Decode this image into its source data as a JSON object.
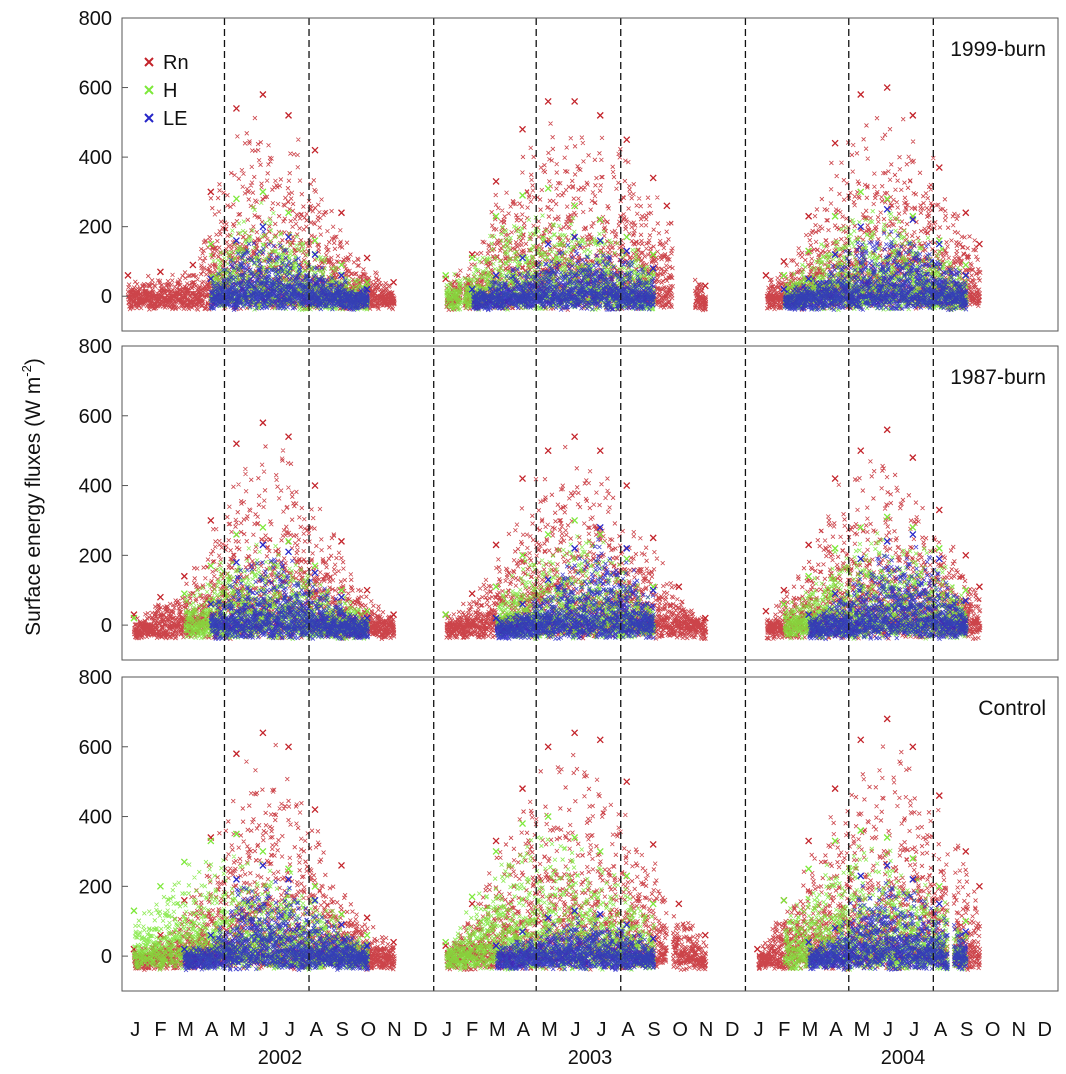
{
  "chart_data": {
    "type": "scatter",
    "ylabel": "Surface energy fluxes (W m",
    "ylabel_sup": "-2",
    "ylabel_close": ")",
    "ylim": [
      -100,
      800
    ],
    "yticks": [
      0,
      200,
      400,
      600,
      800
    ],
    "xlim": [
      "2002-01-01",
      "2004-12-31"
    ],
    "month_labels": [
      "J",
      "F",
      "M",
      "A",
      "M",
      "J",
      "J",
      "A",
      "S",
      "O",
      "N",
      "D",
      "J",
      "F",
      "M",
      "A",
      "M",
      "J",
      "J",
      "A",
      "S",
      "O",
      "N",
      "D",
      "J",
      "F",
      "M",
      "A",
      "M",
      "J",
      "J",
      "A",
      "S",
      "O",
      "N",
      "D"
    ],
    "years": [
      "2002",
      "2003",
      "2004"
    ],
    "year_boundaries": [
      "2003-01-01",
      "2004-01-01"
    ],
    "season_markers": [
      "2002-05-01",
      "2002-08-08",
      "2003-05-01",
      "2003-08-08",
      "2004-05-01",
      "2004-08-08"
    ],
    "legend": {
      "placement": "top-left",
      "entries": [
        {
          "name": "Rn",
          "color": "#c3232a"
        },
        {
          "name": "H",
          "color": "#7de83a"
        },
        {
          "name": "LE",
          "color": "#2626c8"
        }
      ]
    },
    "panels": [
      {
        "name": "1999-burn",
        "gaps": [
          [
            "2002-12-05",
            "2003-01-01"
          ],
          [
            "2003-02-02",
            "2003-02-06"
          ],
          [
            "2003-10-08",
            "2003-11-03"
          ],
          [
            "2003-11-22",
            "2004-01-16"
          ]
        ],
        "series": [
          {
            "name": "Rn",
            "x": [
              "2002-01-08",
              "2002-02-15",
              "2002-03-25",
              "2002-04-15",
              "2002-05-15",
              "2002-06-15",
              "2002-07-15",
              "2002-08-15",
              "2002-09-15",
              "2002-10-15",
              "2002-11-15",
              "2003-01-15",
              "2003-02-15",
              "2003-03-15",
              "2003-04-15",
              "2003-05-15",
              "2003-06-15",
              "2003-07-15",
              "2003-08-15",
              "2003-09-15",
              "2003-10-01",
              "2003-11-15",
              "2004-01-25",
              "2004-02-15",
              "2004-03-15",
              "2004-04-15",
              "2004-05-15",
              "2004-06-15",
              "2004-07-15",
              "2004-08-15",
              "2004-09-15",
              "2004-10-01"
            ],
            "y": [
              60,
              70,
              90,
              300,
              540,
              580,
              520,
              420,
              240,
              110,
              40,
              50,
              120,
              330,
              480,
              560,
              560,
              520,
              450,
              340,
              260,
              30,
              60,
              100,
              230,
              440,
              580,
              600,
              520,
              370,
              240,
              150
            ]
          },
          {
            "name": "H",
            "x": [
              "2002-04-15",
              "2002-05-15",
              "2002-06-15",
              "2002-07-15",
              "2002-08-15",
              "2002-09-15",
              "2002-10-15",
              "2003-01-15",
              "2003-02-15",
              "2003-03-15",
              "2003-04-15",
              "2003-05-15",
              "2003-06-15",
              "2003-07-15",
              "2003-08-15",
              "2003-09-15",
              "2004-02-15",
              "2004-03-15",
              "2004-04-15",
              "2004-05-15",
              "2004-06-15",
              "2004-07-15",
              "2004-08-15",
              "2004-09-15"
            ],
            "y": [
              150,
              280,
              300,
              240,
              160,
              90,
              40,
              60,
              110,
              230,
              290,
              310,
              260,
              220,
              170,
              120,
              60,
              130,
              230,
              300,
              280,
              230,
              160,
              90
            ]
          },
          {
            "name": "LE",
            "x": [
              "2002-04-15",
              "2002-05-15",
              "2002-06-15",
              "2002-07-15",
              "2002-08-15",
              "2002-09-15",
              "2002-10-15",
              "2003-02-15",
              "2003-03-15",
              "2003-04-15",
              "2003-05-15",
              "2003-06-15",
              "2003-07-15",
              "2003-08-15",
              "2003-09-15",
              "2004-02-15",
              "2004-03-15",
              "2004-04-15",
              "2004-05-15",
              "2004-06-15",
              "2004-07-15",
              "2004-08-15",
              "2004-09-15"
            ],
            "y": [
              50,
              160,
              200,
              170,
              120,
              60,
              20,
              20,
              60,
              110,
              150,
              170,
              160,
              130,
              80,
              20,
              50,
              120,
              200,
              250,
              220,
              150,
              60
            ]
          }
        ]
      },
      {
        "name": "1987-burn",
        "gaps": [
          [
            "2002-12-05",
            "2003-01-01"
          ],
          [
            "2003-11-22",
            "2004-01-16"
          ]
        ],
        "series": [
          {
            "name": "Rn",
            "x": [
              "2002-01-15",
              "2002-02-15",
              "2002-03-15",
              "2002-04-15",
              "2002-05-15",
              "2002-06-15",
              "2002-07-15",
              "2002-08-15",
              "2002-09-15",
              "2002-10-15",
              "2002-11-15",
              "2003-01-15",
              "2003-02-15",
              "2003-03-15",
              "2003-04-15",
              "2003-05-15",
              "2003-06-15",
              "2003-07-15",
              "2003-08-15",
              "2003-09-15",
              "2003-10-15",
              "2003-11-15",
              "2004-01-25",
              "2004-02-15",
              "2004-03-15",
              "2004-04-15",
              "2004-05-15",
              "2004-06-15",
              "2004-07-15",
              "2004-08-15",
              "2004-09-15",
              "2004-10-01"
            ],
            "y": [
              30,
              80,
              140,
              300,
              520,
              580,
              540,
              400,
              240,
              100,
              30,
              30,
              90,
              230,
              420,
              500,
              540,
              500,
              400,
              250,
              110,
              20,
              40,
              100,
              230,
              420,
              500,
              560,
              480,
              330,
              200,
              110
            ]
          },
          {
            "name": "H",
            "x": [
              "2002-01-15",
              "2002-03-15",
              "2002-04-15",
              "2002-05-15",
              "2002-06-15",
              "2002-07-15",
              "2002-08-15",
              "2002-09-15",
              "2002-10-15",
              "2003-01-15",
              "2003-03-15",
              "2003-04-15",
              "2003-05-15",
              "2003-06-15",
              "2003-07-15",
              "2003-08-15",
              "2003-09-15",
              "2004-02-15",
              "2004-03-15",
              "2004-04-15",
              "2004-05-15",
              "2004-06-15",
              "2004-07-15",
              "2004-08-15",
              "2004-09-15"
            ],
            "y": [
              20,
              90,
              170,
              260,
              280,
              240,
              170,
              100,
              40,
              30,
              110,
              200,
              260,
              300,
              260,
              190,
              110,
              60,
              140,
              220,
              280,
              310,
              280,
              220,
              100
            ]
          },
          {
            "name": "LE",
            "x": [
              "2002-04-15",
              "2002-05-15",
              "2002-06-15",
              "2002-07-15",
              "2002-08-15",
              "2002-09-15",
              "2002-10-15",
              "2003-03-15",
              "2003-04-15",
              "2003-05-15",
              "2003-06-15",
              "2003-07-15",
              "2003-08-15",
              "2003-09-15",
              "2004-03-15",
              "2004-04-15",
              "2004-05-15",
              "2004-06-15",
              "2004-07-15",
              "2004-08-15",
              "2004-09-15"
            ],
            "y": [
              60,
              180,
              230,
              210,
              150,
              80,
              20,
              20,
              60,
              130,
              220,
              280,
              220,
              100,
              30,
              90,
              190,
              240,
              260,
              190,
              70
            ]
          }
        ]
      },
      {
        "name": "Control",
        "gaps": [
          [
            "2002-12-05",
            "2003-01-01"
          ],
          [
            "2003-10-01",
            "2003-10-08"
          ],
          [
            "2003-11-22",
            "2003-12-01"
          ],
          [
            "2003-12-20",
            "2004-01-01"
          ],
          [
            "2004-08-25",
            "2004-09-01"
          ]
        ],
        "series": [
          {
            "name": "Rn",
            "x": [
              "2002-01-15",
              "2002-02-15",
              "2002-03-15",
              "2002-04-15",
              "2002-05-15",
              "2002-06-15",
              "2002-07-15",
              "2002-08-15",
              "2002-09-15",
              "2002-10-15",
              "2002-11-15",
              "2003-01-15",
              "2003-02-15",
              "2003-03-15",
              "2003-04-15",
              "2003-05-15",
              "2003-06-15",
              "2003-07-15",
              "2003-08-15",
              "2003-09-15",
              "2003-10-15",
              "2003-11-15",
              "2004-01-15",
              "2004-02-15",
              "2004-03-15",
              "2004-04-15",
              "2004-05-15",
              "2004-06-15",
              "2004-07-15",
              "2004-08-15",
              "2004-09-15",
              "2004-10-01"
            ],
            "y": [
              20,
              60,
              160,
              340,
              580,
              640,
              600,
              420,
              260,
              110,
              40,
              30,
              150,
              330,
              480,
              600,
              640,
              620,
              500,
              320,
              150,
              60,
              20,
              160,
              330,
              480,
              620,
              680,
              600,
              460,
              300,
              200
            ]
          },
          {
            "name": "H",
            "x": [
              "2002-01-15",
              "2002-02-15",
              "2002-03-15",
              "2002-04-15",
              "2002-05-15",
              "2002-06-15",
              "2002-07-15",
              "2002-08-15",
              "2002-09-15",
              "2002-10-15",
              "2003-01-15",
              "2003-02-15",
              "2003-03-15",
              "2003-04-15",
              "2003-05-15",
              "2003-06-15",
              "2003-07-15",
              "2003-08-15",
              "2003-09-15",
              "2004-02-15",
              "2004-03-15",
              "2004-04-15",
              "2004-05-15",
              "2004-06-15",
              "2004-07-15",
              "2004-08-15",
              "2004-09-15"
            ],
            "y": [
              130,
              200,
              270,
              330,
              350,
              300,
              250,
              200,
              120,
              60,
              40,
              170,
              300,
              380,
              400,
              340,
              300,
              230,
              150,
              160,
              250,
              330,
              360,
              340,
              280,
              200,
              100
            ]
          },
          {
            "name": "LE",
            "x": [
              "2002-03-15",
              "2002-04-15",
              "2002-05-15",
              "2002-06-15",
              "2002-07-15",
              "2002-08-15",
              "2002-09-15",
              "2002-10-15",
              "2003-03-15",
              "2003-04-15",
              "2003-05-15",
              "2003-06-15",
              "2003-07-15",
              "2003-08-15",
              "2003-09-15",
              "2004-03-15",
              "2004-04-15",
              "2004-05-15",
              "2004-06-15",
              "2004-07-15",
              "2004-08-15",
              "2004-09-15"
            ],
            "y": [
              20,
              60,
              220,
              260,
              220,
              160,
              90,
              30,
              30,
              70,
              110,
              130,
              120,
              90,
              50,
              40,
              80,
              230,
              260,
              220,
              150,
              70
            ]
          }
        ]
      }
    ]
  }
}
